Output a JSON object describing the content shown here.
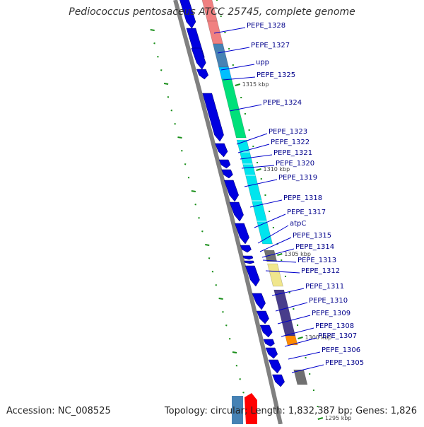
{
  "title": "Pediococcus pentosaceus ATCC 25745, complete genome",
  "footer": {
    "accession": "Accession: NC_008525",
    "summary": "Topology: circular; Length: 1,832,387 bp; Genes: 1,826"
  },
  "scale_labels": [
    "1315 kbp",
    "1310 kbp",
    "1305 kbp",
    "1300 kbp",
    "1295 kbp"
  ],
  "gene_labels": [
    "PEPE_1328",
    "PEPE_1327",
    "upp",
    "PEPE_1325",
    "PEPE_1324",
    "PEPE_1323",
    "PEPE_1322",
    "PEPE_1321",
    "PEPE_1320",
    "PEPE_1319",
    "PEPE_1318",
    "PEPE_1317",
    "atpC",
    "PEPE_1315",
    "PEPE_1314",
    "PEPE_1313",
    "PEPE_1312",
    "PEPE_1311",
    "PEPE_1310",
    "PEPE_1309",
    "PEPE_1308",
    "PEPE_1307",
    "PEPE_1306",
    "PEPE_1305"
  ],
  "colors": {
    "backbone": "#808080",
    "cds": "#0000e0",
    "label_line": "#0000cc",
    "label_text": "#00008b",
    "tick": "#1a8f1a"
  }
}
